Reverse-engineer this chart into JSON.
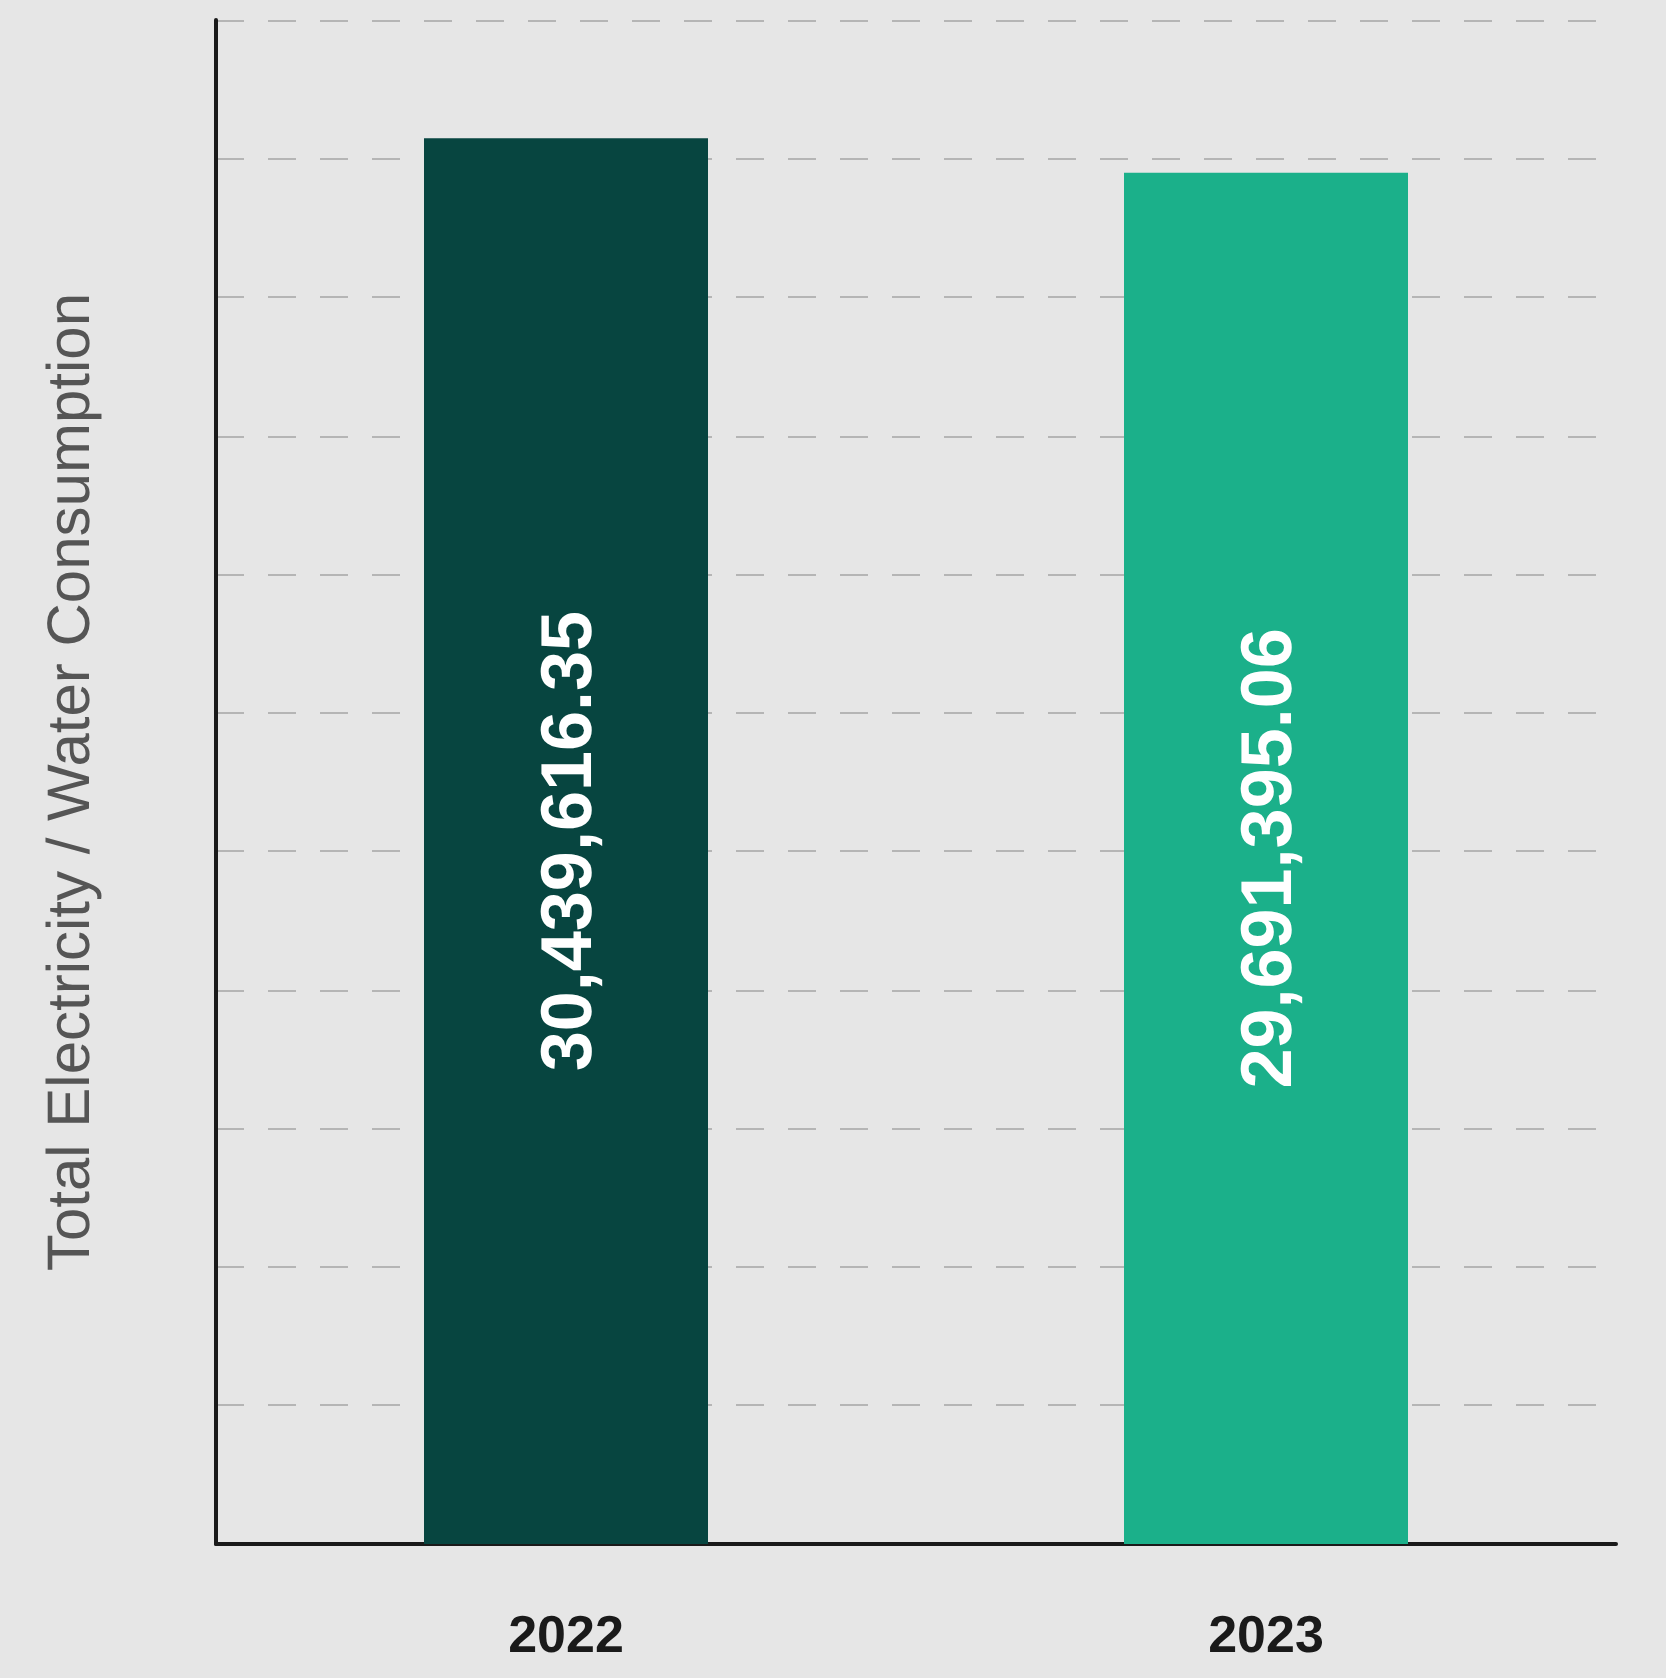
{
  "chart_data": {
    "type": "bar",
    "ylabel": "Total Electricity / Water Consumption",
    "categories": [
      "2022",
      "2023"
    ],
    "values": [
      30439616.35,
      29691395.06
    ],
    "colors": [
      "#074540",
      "#1bb08a"
    ],
    "value_labels": [
      "30,439,616.35",
      "29,691,395.06"
    ],
    "grid": "y",
    "tick_labels": "x"
  }
}
